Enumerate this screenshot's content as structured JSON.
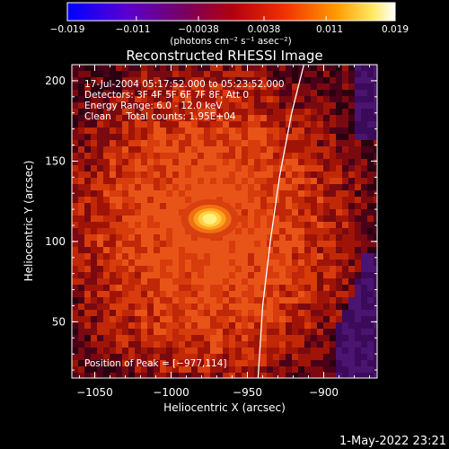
{
  "chart_data": {
    "type": "heatmap",
    "title": "Reconstructed RHESSI Image",
    "colorbar": {
      "range": [
        -0.019,
        0.019
      ],
      "tick_labels": [
        "−0.019",
        "−0.011",
        "−0.0038",
        "0.0038",
        "0.011",
        "0.019"
      ],
      "tick_values": [
        -0.019,
        -0.011,
        -0.0038,
        0.0038,
        0.011,
        0.019
      ],
      "unit_label": "(photons cm⁻² s⁻¹ asec⁻²)",
      "colormap": [
        "#0000ff",
        "#6a00c8",
        "#8a0030",
        "#e61400",
        "#ff8a00",
        "#ffff80",
        "#ffffff"
      ]
    },
    "xlabel": "Heliocentric X (arcsec)",
    "ylabel": "Heliocentric Y (arcsec)",
    "xlim": [
      -1065,
      -865
    ],
    "ylim": [
      15,
      210
    ],
    "x_ticks": [
      -1050,
      -1000,
      -950,
      -900
    ],
    "x_tick_labels": [
      "−1050",
      "−1000",
      "−950",
      "−900"
    ],
    "y_ticks": [
      50,
      100,
      150,
      200
    ],
    "y_tick_labels": [
      "50",
      "100",
      "150",
      "200"
    ],
    "annotations": [
      "17-Jul-2004 05:17:52.000 to 05:23:52.000",
      "Detectors: 3F 4F 5F 6F 7F 8F, Att 0",
      "Energy Range: 6.0 - 12.0 keV",
      "Clean     Total counts: 1.95E+04"
    ],
    "peak_label": "Position of Peak = [−977,114]",
    "peak": {
      "x": -977,
      "y": 114
    },
    "limb_curve": [
      [
        -943,
        15
      ],
      [
        -940,
        60
      ],
      [
        -935,
        100
      ],
      [
        -929,
        140
      ],
      [
        -921,
        180
      ],
      [
        -913,
        210
      ]
    ],
    "grid": false
  },
  "footer": {
    "timestamp": "1-May-2022 23:21"
  }
}
